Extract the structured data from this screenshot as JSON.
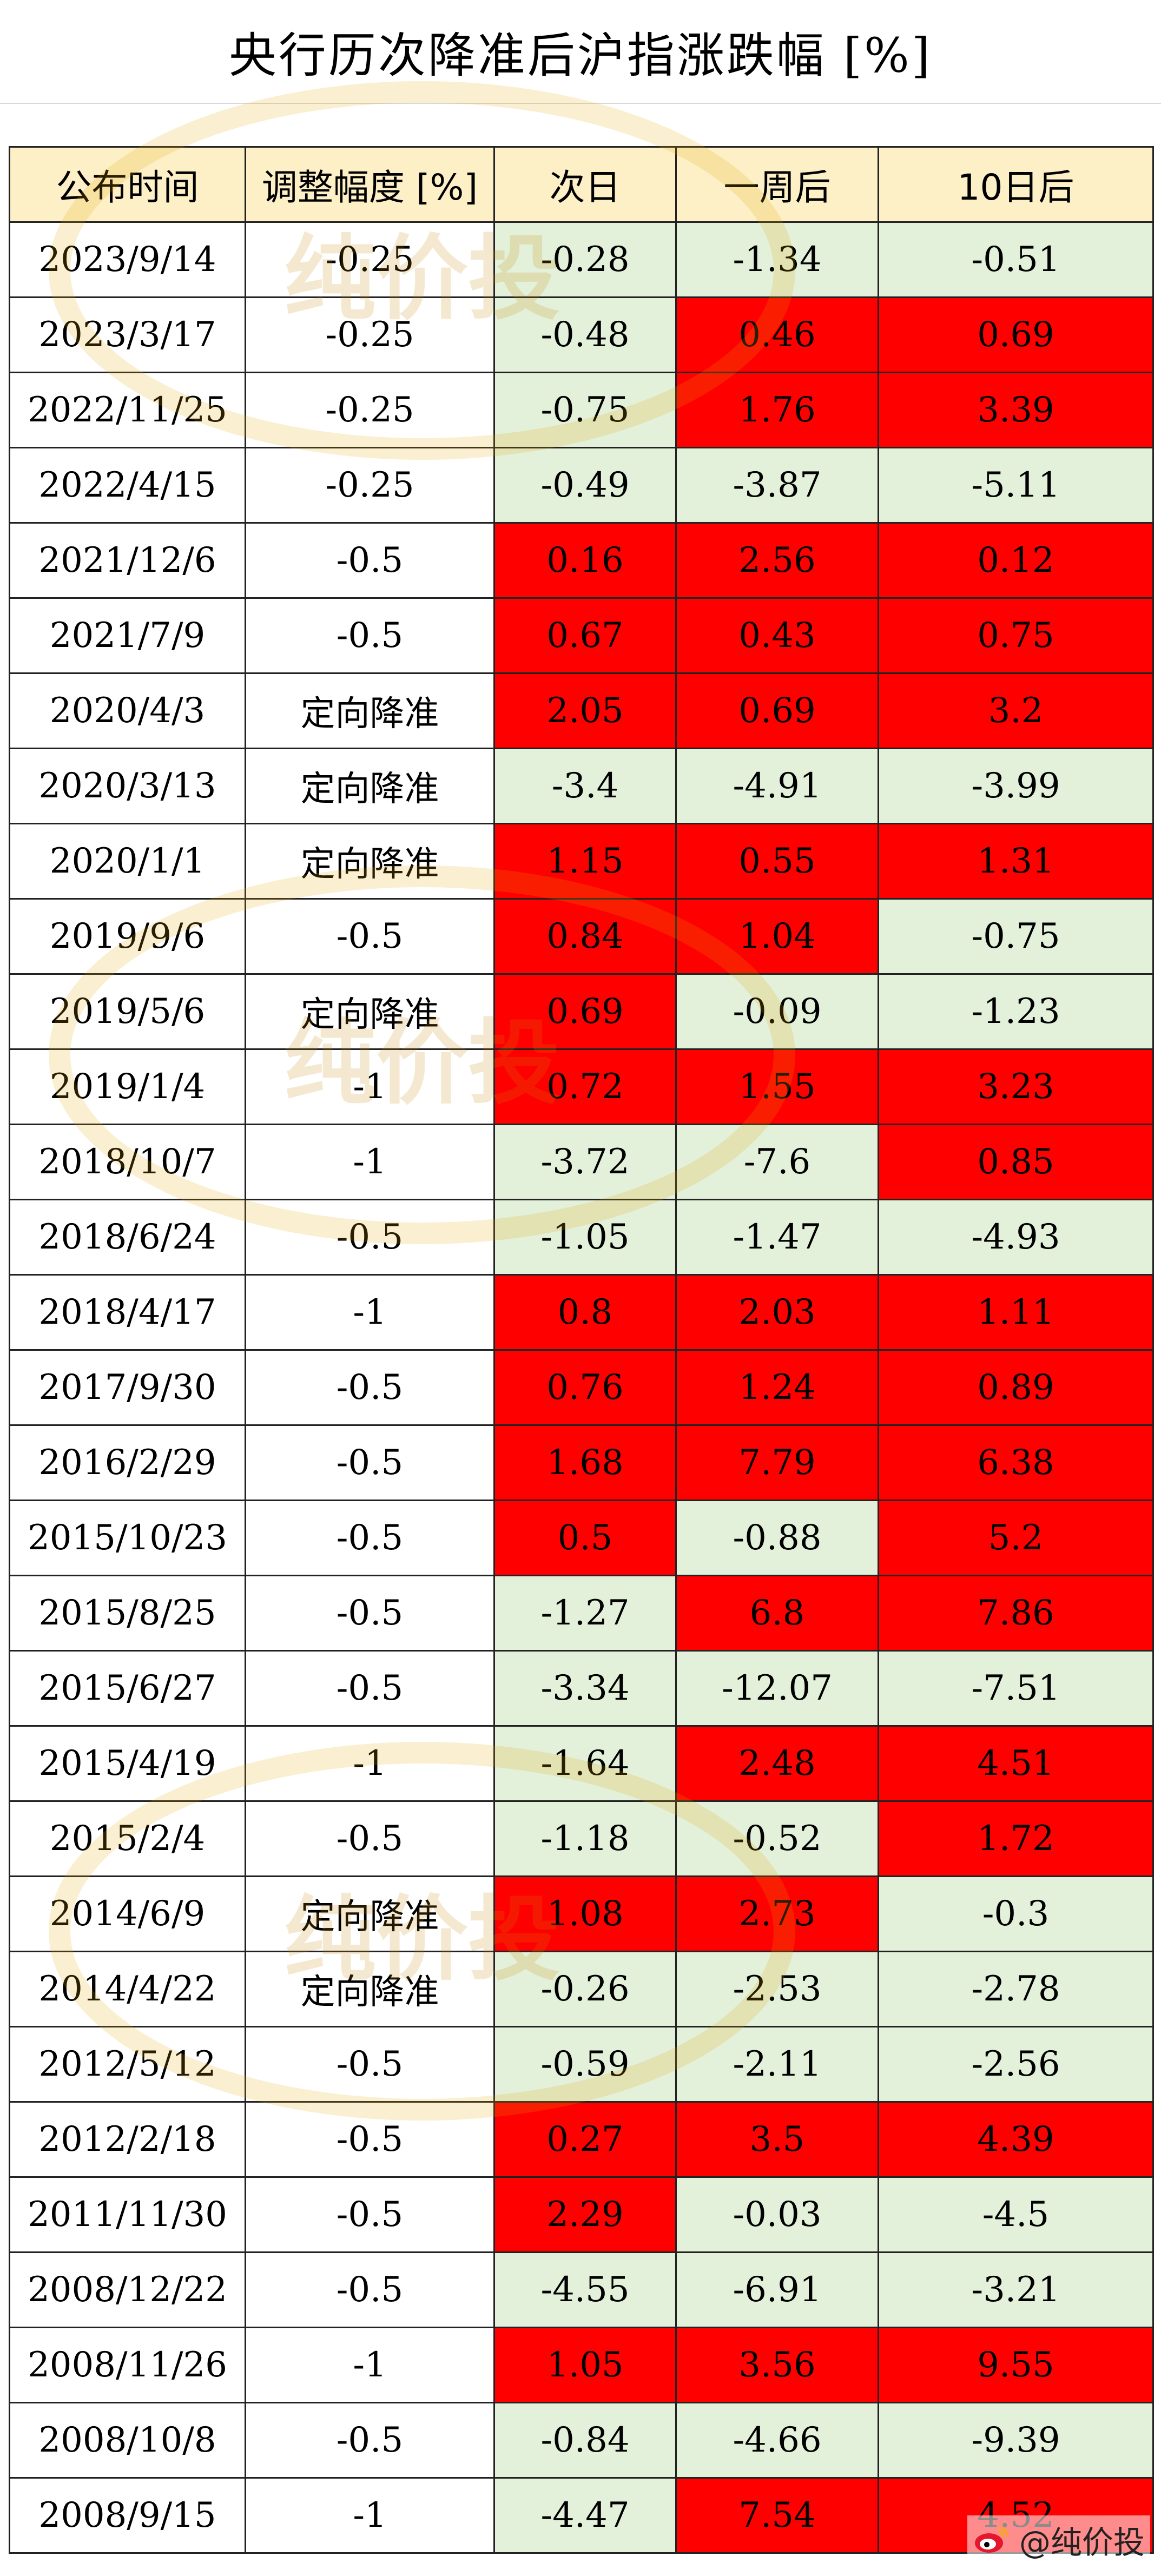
{
  "title": "央行历次降准后沪指涨跌幅 [%]",
  "headers": [
    "公布时间",
    "调整幅度 [%]",
    "次日",
    "一周后",
    "10日后"
  ],
  "rows": [
    {
      "date": "2023/9/14",
      "adj": "-0.25",
      "d1": "-0.28",
      "w1": "-1.34",
      "d10": "-0.51"
    },
    {
      "date": "2023/3/17",
      "adj": "-0.25",
      "d1": "-0.48",
      "w1": "0.46",
      "d10": "0.69"
    },
    {
      "date": "2022/11/25",
      "adj": "-0.25",
      "d1": "-0.75",
      "w1": "1.76",
      "d10": "3.39"
    },
    {
      "date": "2022/4/15",
      "adj": "-0.25",
      "d1": "-0.49",
      "w1": "-3.87",
      "d10": "-5.11"
    },
    {
      "date": "2021/12/6",
      "adj": "-0.5",
      "d1": "0.16",
      "w1": "2.56",
      "d10": "0.12"
    },
    {
      "date": "2021/7/9",
      "adj": "-0.5",
      "d1": "0.67",
      "w1": "0.43",
      "d10": "0.75"
    },
    {
      "date": "2020/4/3",
      "adj": "定向降准",
      "d1": "2.05",
      "w1": "0.69",
      "d10": "3.2"
    },
    {
      "date": "2020/3/13",
      "adj": "定向降准",
      "d1": "-3.4",
      "w1": "-4.91",
      "d10": "-3.99"
    },
    {
      "date": "2020/1/1",
      "adj": "定向降准",
      "d1": "1.15",
      "w1": "0.55",
      "d10": "1.31"
    },
    {
      "date": "2019/9/6",
      "adj": "-0.5",
      "d1": "0.84",
      "w1": "1.04",
      "d10": "-0.75"
    },
    {
      "date": "2019/5/6",
      "adj": "定向降准",
      "d1": "0.69",
      "w1": "-0.09",
      "d10": "-1.23"
    },
    {
      "date": "2019/1/4",
      "adj": "-1",
      "d1": "0.72",
      "w1": "1.55",
      "d10": "3.23"
    },
    {
      "date": "2018/10/7",
      "adj": "-1",
      "d1": "-3.72",
      "w1": "-7.6",
      "d10": "0.85"
    },
    {
      "date": "2018/6/24",
      "adj": "-0.5",
      "d1": "-1.05",
      "w1": "-1.47",
      "d10": "-4.93"
    },
    {
      "date": "2018/4/17",
      "adj": "-1",
      "d1": "0.8",
      "w1": "2.03",
      "d10": "1.11"
    },
    {
      "date": "2017/9/30",
      "adj": "-0.5",
      "d1": "0.76",
      "w1": "1.24",
      "d10": "0.89"
    },
    {
      "date": "2016/2/29",
      "adj": "-0.5",
      "d1": "1.68",
      "w1": "7.79",
      "d10": "6.38"
    },
    {
      "date": "2015/10/23",
      "adj": "-0.5",
      "d1": "0.5",
      "w1": "-0.88",
      "d10": "5.2"
    },
    {
      "date": "2015/8/25",
      "adj": "-0.5",
      "d1": "-1.27",
      "w1": "6.8",
      "d10": "7.86"
    },
    {
      "date": "2015/6/27",
      "adj": "-0.5",
      "d1": "-3.34",
      "w1": "-12.07",
      "d10": "-7.51"
    },
    {
      "date": "2015/4/19",
      "adj": "-1",
      "d1": "-1.64",
      "w1": "2.48",
      "d10": "4.51"
    },
    {
      "date": "2015/2/4",
      "adj": "-0.5",
      "d1": "-1.18",
      "w1": "-0.52",
      "d10": "1.72"
    },
    {
      "date": "2014/6/9",
      "adj": "定向降准",
      "d1": "1.08",
      "w1": "2.73",
      "d10": "-0.3"
    },
    {
      "date": "2014/4/22",
      "adj": "定向降准",
      "d1": "-0.26",
      "w1": "-2.53",
      "d10": "-2.78"
    },
    {
      "date": "2012/5/12",
      "adj": "-0.5",
      "d1": "-0.59",
      "w1": "-2.11",
      "d10": "-2.56"
    },
    {
      "date": "2012/2/18",
      "adj": "-0.5",
      "d1": "0.27",
      "w1": "3.5",
      "d10": "4.39"
    },
    {
      "date": "2011/11/30",
      "adj": "-0.5",
      "d1": "2.29",
      "w1": "-0.03",
      "d10": "-4.5"
    },
    {
      "date": "2008/12/22",
      "adj": "-0.5",
      "d1": "-4.55",
      "w1": "-6.91",
      "d10": "-3.21"
    },
    {
      "date": "2008/11/26",
      "adj": "-1",
      "d1": "1.05",
      "w1": "3.56",
      "d10": "9.55"
    },
    {
      "date": "2008/10/8",
      "adj": "-0.5",
      "d1": "-0.84",
      "w1": "-4.66",
      "d10": "-9.39"
    },
    {
      "date": "2008/9/15",
      "adj": "-1",
      "d1": "-4.47",
      "w1": "7.54",
      "d10": "4.52"
    }
  ],
  "colors": {
    "positive": "#ff0000",
    "negative": "#e3f0da",
    "header": "#fdefc6"
  },
  "watermark_text": "纯价投",
  "credit": {
    "icon": "weibo-icon",
    "text": "@纯价投"
  }
}
